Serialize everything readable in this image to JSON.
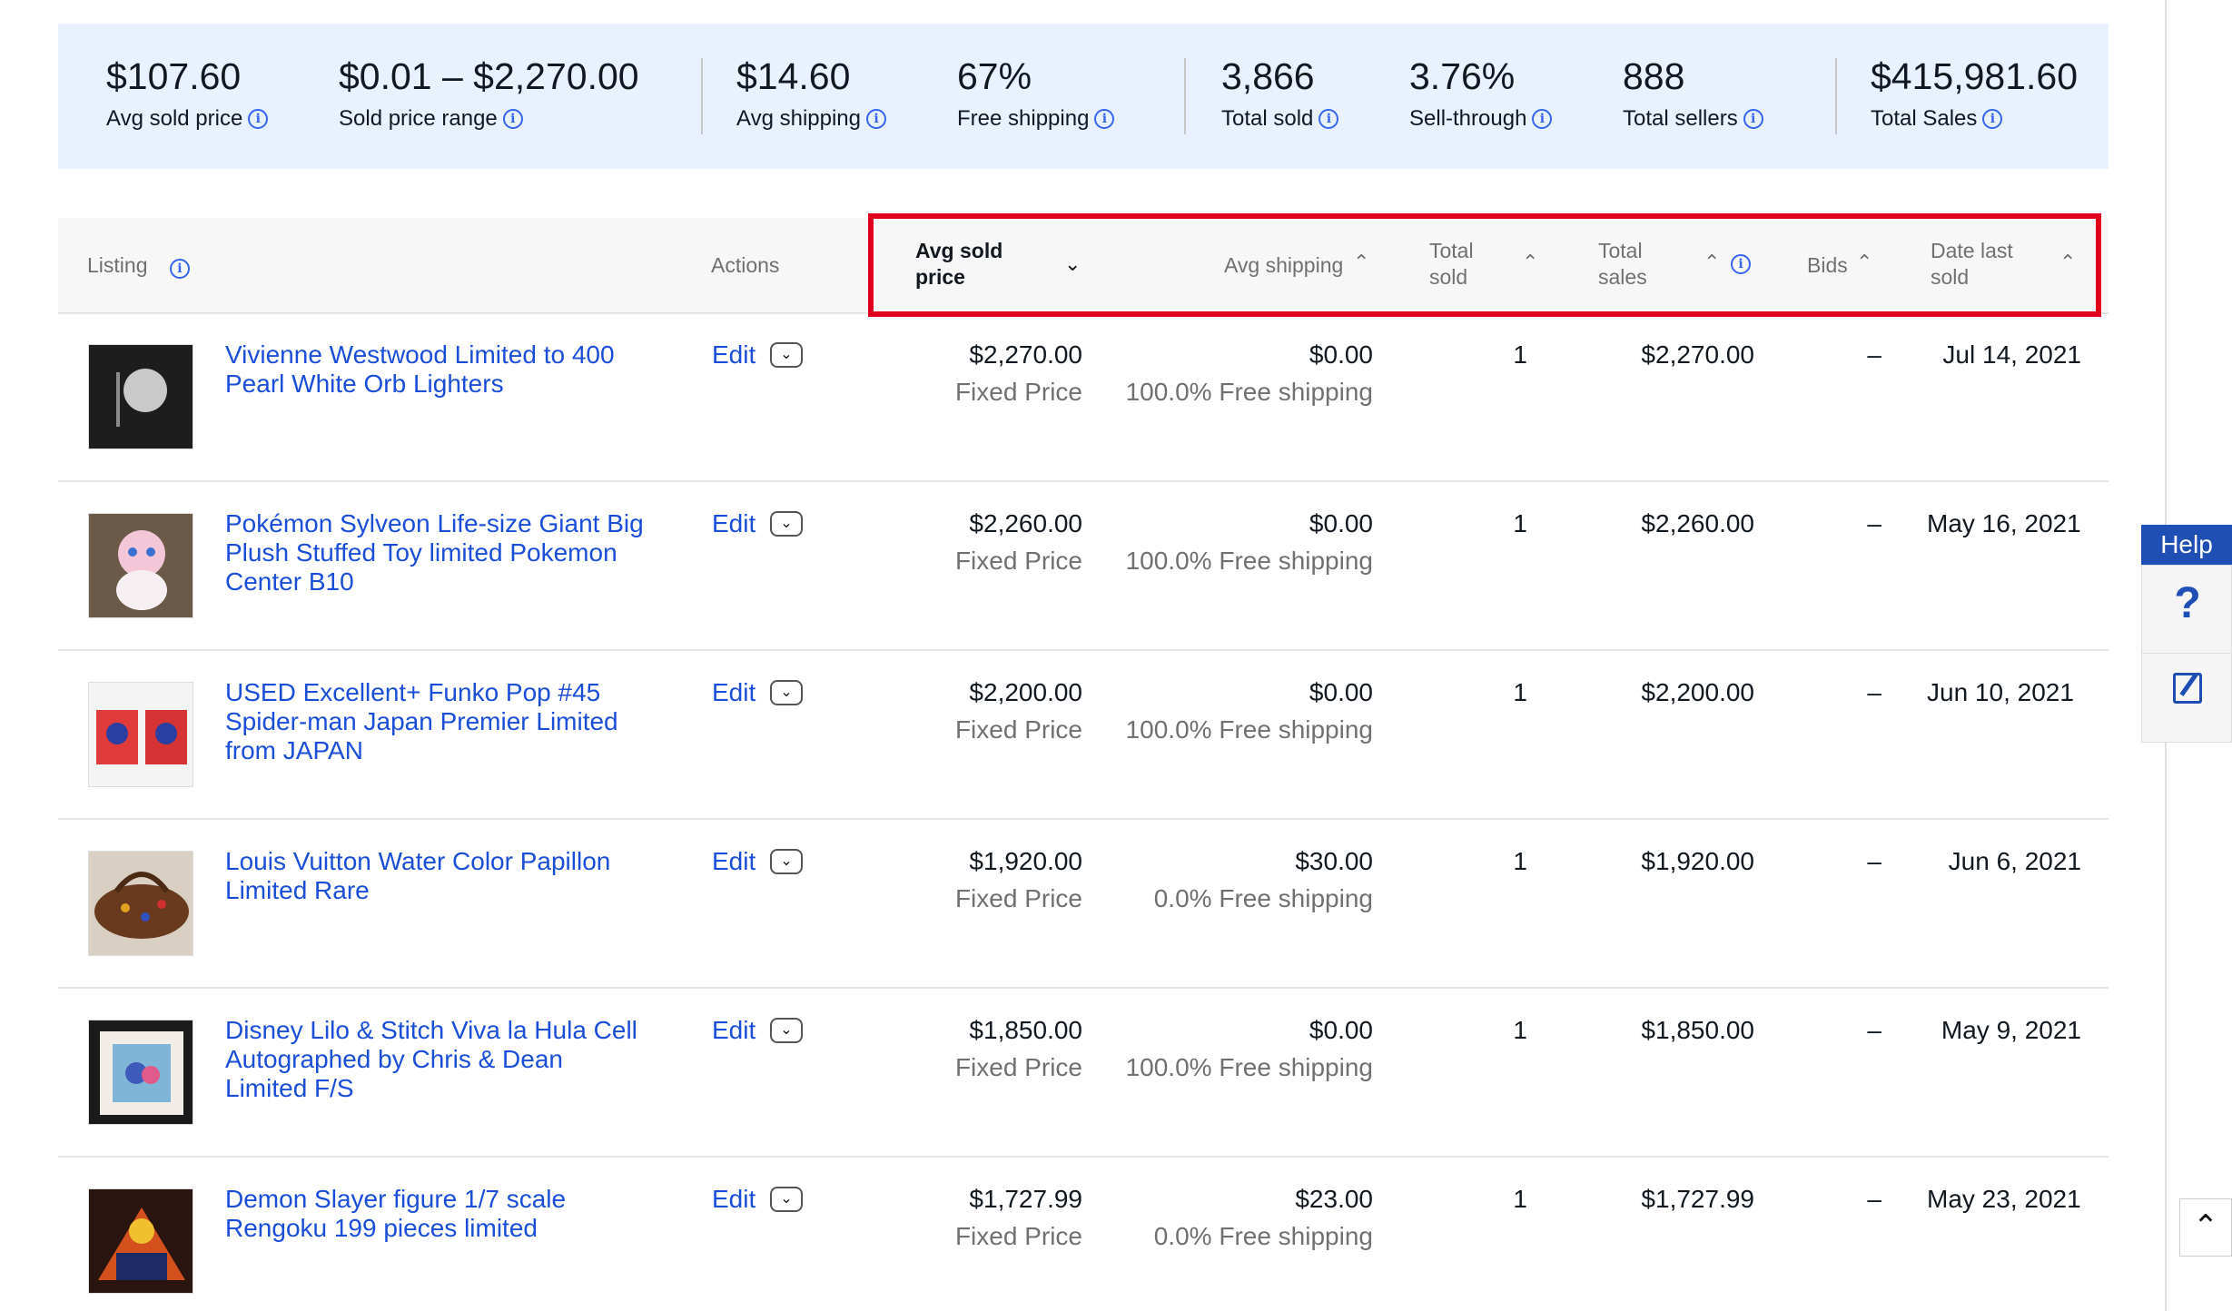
{
  "stats": [
    {
      "value": "$107.60",
      "label": "Avg sold price"
    },
    {
      "value": "$0.01 – $2,270.00",
      "label": "Sold price range"
    },
    {
      "value": "$14.60",
      "label": "Avg shipping"
    },
    {
      "value": "67%",
      "label": "Free shipping"
    },
    {
      "value": "3,866",
      "label": "Total sold"
    },
    {
      "value": "3.76%",
      "label": "Sell-through"
    },
    {
      "value": "888",
      "label": "Total sellers"
    },
    {
      "value": "$415,981.60",
      "label": "Total Sales"
    }
  ],
  "headers": {
    "listing": "Listing",
    "actions": "Actions",
    "avg_sold_price_1": "Avg sold",
    "avg_sold_price_2": "price",
    "avg_shipping": "Avg shipping",
    "total_sold_1": "Total",
    "total_sold_2": "sold",
    "total_sales_1": "Total",
    "total_sales_2": "sales",
    "bids": "Bids",
    "date_last_sold_1": "Date last",
    "date_last_sold_2": "sold"
  },
  "rows": [
    {
      "title": "Vivienne Westwood Limited to 400 Pearl White Orb Lighters",
      "edit": "Edit",
      "price": "$2,270.00",
      "format": "Fixed Price",
      "shipping": "$0.00",
      "ship_note": "100.0% Free shipping",
      "sold": "1",
      "sales": "$2,270.00",
      "bids": "–",
      "date": "Jul 14, 2021"
    },
    {
      "title": "Pokémon Sylveon Life-size Giant Big Plush Stuffed Toy limited Pokemon Center B10",
      "edit": "Edit",
      "price": "$2,260.00",
      "format": "Fixed Price",
      "shipping": "$0.00",
      "ship_note": "100.0% Free shipping",
      "sold": "1",
      "sales": "$2,260.00",
      "bids": "–",
      "date": "May 16, 2021"
    },
    {
      "title": "USED Excellent+ Funko Pop #45 Spider-man Japan Premier Limited from JAPAN",
      "edit": "Edit",
      "price": "$2,200.00",
      "format": "Fixed Price",
      "shipping": "$0.00",
      "ship_note": "100.0% Free shipping",
      "sold": "1",
      "sales": "$2,200.00",
      "bids": "–",
      "date": "Jun 10, 2021"
    },
    {
      "title": "Louis Vuitton Water Color Papillon Limited Rare",
      "edit": "Edit",
      "price": "$1,920.00",
      "format": "Fixed Price",
      "shipping": "$30.00",
      "ship_note": "0.0% Free shipping",
      "sold": "1",
      "sales": "$1,920.00",
      "bids": "–",
      "date": "Jun 6, 2021"
    },
    {
      "title": "Disney Lilo & Stitch Viva la Hula Cell Autographed by Chris & Dean Limited F/S",
      "edit": "Edit",
      "price": "$1,850.00",
      "format": "Fixed Price",
      "shipping": "$0.00",
      "ship_note": "100.0% Free shipping",
      "sold": "1",
      "sales": "$1,850.00",
      "bids": "–",
      "date": "May 9, 2021"
    },
    {
      "title": "Demon Slayer figure 1/7 scale Rengoku 199 pieces limited",
      "edit": "Edit",
      "price": "$1,727.99",
      "format": "Fixed Price",
      "shipping": "$23.00",
      "ship_note": "0.0% Free shipping",
      "sold": "1",
      "sales": "$1,727.99",
      "bids": "–",
      "date": "May 23, 2021"
    }
  ],
  "help": {
    "tab": "Help",
    "question": "?"
  },
  "icons": {
    "info": "info-icon",
    "sort": "sort-icon",
    "dropdown": "chevron-down-icon",
    "scroll_top": "chevron-up-icon"
  },
  "colors": {
    "accent": "#3665f3",
    "link": "#1a4ed8",
    "highlight": "#e0001b",
    "stats_bg": "#e8f1fd",
    "help": "#1f4fb5"
  }
}
